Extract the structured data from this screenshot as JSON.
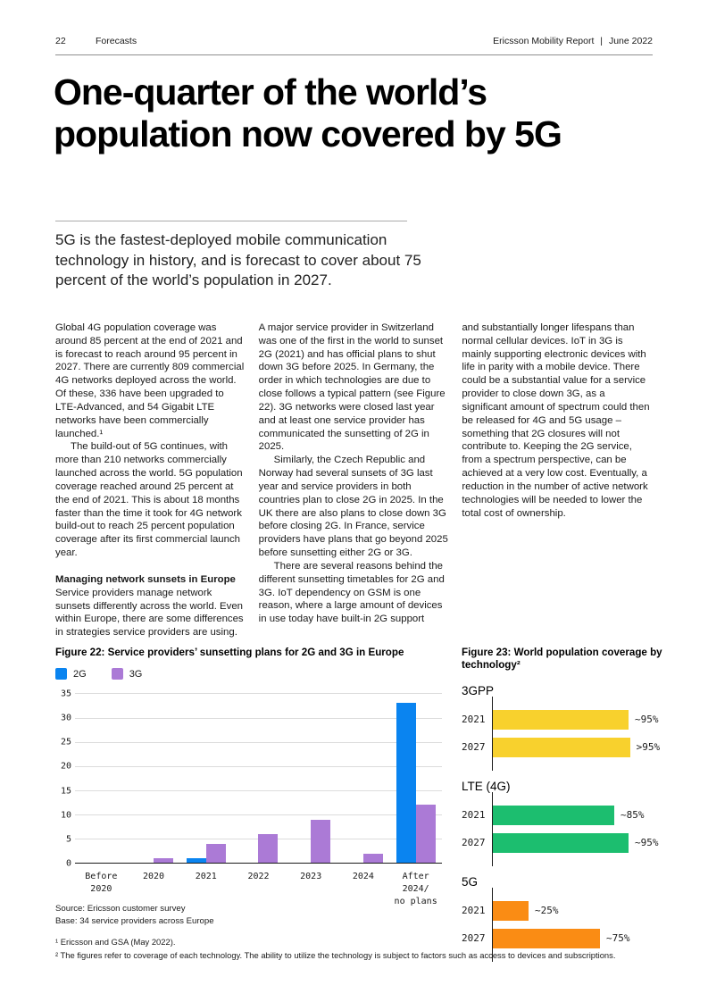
{
  "header": {
    "page_number": "22",
    "section": "Forecasts",
    "report_title": "Ericsson Mobility Report",
    "divider": "|",
    "issue": "June 2022"
  },
  "headline": "One-quarter of the world’s population now covered by 5G",
  "lede": "5G is the fastest-deployed mobile communication technology in history, and is forecast to cover about 75 percent of the world’s population in 2027.",
  "body": {
    "col1": {
      "p1": "Global 4G population coverage was around 85 percent at the end of 2021 and is forecast to reach around 95 percent in 2027. There are currently 809 commercial 4G networks deployed across the world. Of these, 336 have been upgraded to LTE-Advanced, and 54 Gigabit LTE networks have been commercially launched.¹",
      "p2": "The build-out of 5G continues, with more than 210 networks commercially launched across the world. 5G population coverage reached around 25 percent at the end of 2021. This is about 18 months faster than the time it took for 4G network build-out to reach 25 percent population coverage after its first commercial launch year.",
      "heading": "Managing network sunsets in Europe",
      "p3": "Service providers manage network sunsets differently across the world. Even within Europe, there are some differences in strategies service providers are using."
    },
    "col2": {
      "p1": "A major service provider in Switzerland was one of the first in the world to sunset 2G (2021) and has official plans to shut down 3G before 2025. In Germany, the order in which technologies are due to close follows a typical pattern (see Figure 22). 3G networks were closed last year and at least one service provider has communicated the sunsetting of 2G in 2025.",
      "p2": "Similarly, the Czech Republic and Norway had several sunsets of 3G last year and service providers in both countries plan to close 2G in 2025. In the UK there are also plans to close down 3G before closing 2G. In France, service providers have plans that go beyond 2025 before sunsetting either 2G or 3G.",
      "p3": "There are several reasons behind the different sunsetting timetables for 2G and 3G. IoT dependency on GSM is one reason, where a large amount of devices in use today have built-in 2G support"
    },
    "col3": {
      "p1": "and substantially longer lifespans than normal cellular devices. IoT in 3G is mainly supporting electronic devices with life in parity with a mobile device. There could be a substantial value for a service provider to close down 3G, as a significant amount of spectrum could then be released for 4G and 5G usage – something that 2G closures will not contribute to. Keeping the 2G service, from a spectrum perspective, can be achieved at a very low cost. Eventually, a reduction in the number of active network technologies will be needed to lower the total cost of ownership."
    }
  },
  "chart_data": [
    {
      "id": "figure22",
      "type": "bar",
      "title": "Figure 22: Service providers’ sunsetting plans for 2G and 3G in Europe",
      "categories": [
        "Before\n2020",
        "2020",
        "2021",
        "2022",
        "2023",
        "2024",
        "After 2024/\nno plans"
      ],
      "series": [
        {
          "name": "2G",
          "color": "#0A84F0",
          "values": [
            0,
            0,
            1,
            0,
            0,
            0,
            33
          ]
        },
        {
          "name": "3G",
          "color": "#AB7AD6",
          "values": [
            0,
            1,
            4,
            6,
            9,
            2,
            12
          ]
        }
      ],
      "ylim": [
        0,
        35
      ],
      "yticks": [
        0,
        5,
        10,
        15,
        20,
        25,
        30,
        35
      ],
      "grid": true,
      "legend_position": "top-left",
      "source": "Source: Ericsson customer survey",
      "base": "Base: 34 service providers across Europe"
    },
    {
      "id": "figure23",
      "type": "bar-horizontal",
      "title": "Figure 23: World population coverage by technology²",
      "xlim": [
        0,
        100
      ],
      "groups": [
        {
          "label": "3GPP",
          "color": "#F8D12D",
          "rows": [
            {
              "year": "2021",
              "value": 95,
              "label": "~95%"
            },
            {
              "year": "2027",
              "value": 96,
              "label": ">95%"
            }
          ]
        },
        {
          "label": "LTE (4G)",
          "color": "#1CBE6F",
          "rows": [
            {
              "year": "2021",
              "value": 85,
              "label": "~85%"
            },
            {
              "year": "2027",
              "value": 95,
              "label": "~95%"
            }
          ]
        },
        {
          "label": "5G",
          "color": "#FA8C14",
          "rows": [
            {
              "year": "2021",
              "value": 25,
              "label": "~25%"
            },
            {
              "year": "2027",
              "value": 75,
              "label": "~75%"
            }
          ]
        }
      ]
    }
  ],
  "footnotes": [
    "¹ Ericsson and GSA (May 2022).",
    "² The figures refer to coverage of each technology. The ability to utilize the technology is subject to factors such as access to devices and subscriptions."
  ]
}
